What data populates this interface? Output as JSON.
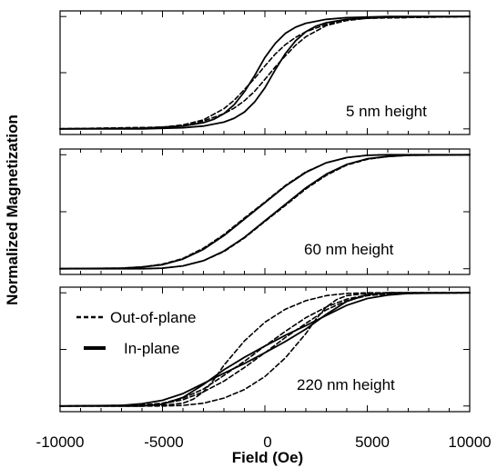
{
  "chart_data": {
    "type": "line",
    "ylabel": "Normalized Magnetization",
    "xlabel": "Field (Oe)",
    "xlim": [
      -10000,
      10000
    ],
    "ylim": [
      -1.1,
      1.1
    ],
    "x_ticks": [
      -10000,
      -5000,
      0,
      5000,
      10000
    ],
    "x_tick_labels": [
      "-10000",
      "-5000",
      "0",
      "5000",
      "10000"
    ],
    "grid": false,
    "legend": {
      "placement": "top-left of bottom panel",
      "entries": [
        {
          "label": "Out-of-plane",
          "style": "dashed"
        },
        {
          "label": "In-plane",
          "style": "solid"
        }
      ]
    },
    "panels": [
      {
        "annotation": "5 nm height",
        "series": [
          {
            "style": "solid",
            "branch": "descending",
            "x": [
              -10000,
              -6000,
              -4000,
              -3000,
              -2500,
              -2000,
              -1500,
              -1000,
              -500,
              0,
              500,
              1000,
              1500,
              2000,
              3000,
              4000,
              5000,
              6000,
              10000
            ],
            "y": [
              -1.0,
              -0.99,
              -0.95,
              -0.89,
              -0.83,
              -0.73,
              -0.57,
              -0.34,
              -0.05,
              0.27,
              0.52,
              0.7,
              0.81,
              0.88,
              0.95,
              0.98,
              0.99,
              1.0,
              1.0
            ]
          },
          {
            "style": "solid",
            "branch": "ascending",
            "x": [
              -10000,
              -6000,
              -5000,
              -4000,
              -3000,
              -2000,
              -1500,
              -1000,
              -500,
              0,
              500,
              1000,
              1500,
              2000,
              2500,
              3000,
              4000,
              6000,
              10000
            ],
            "y": [
              -1.0,
              -1.0,
              -0.99,
              -0.98,
              -0.95,
              -0.88,
              -0.81,
              -0.7,
              -0.52,
              -0.27,
              0.05,
              0.34,
              0.57,
              0.73,
              0.83,
              0.89,
              0.95,
              0.99,
              1.0
            ]
          },
          {
            "style": "dashed",
            "branch": "descending",
            "x": [
              -10000,
              -5000,
              -4000,
              -3000,
              -2000,
              -1500,
              -1000,
              -500,
              0,
              500,
              1000,
              1500,
              2000,
              3000,
              4000,
              5000,
              10000
            ],
            "y": [
              -1.0,
              -0.97,
              -0.93,
              -0.84,
              -0.64,
              -0.49,
              -0.3,
              -0.1,
              0.12,
              0.33,
              0.5,
              0.63,
              0.73,
              0.86,
              0.93,
              0.97,
              1.0
            ]
          },
          {
            "style": "dashed",
            "branch": "ascending",
            "x": [
              -10000,
              -5000,
              -4000,
              -3000,
              -2000,
              -1500,
              -1000,
              -500,
              0,
              500,
              1000,
              1500,
              2000,
              3000,
              4000,
              5000,
              10000
            ],
            "y": [
              -1.0,
              -0.97,
              -0.93,
              -0.86,
              -0.73,
              -0.63,
              -0.5,
              -0.33,
              -0.12,
              0.1,
              0.3,
              0.49,
              0.64,
              0.84,
              0.93,
              0.97,
              1.0
            ]
          }
        ]
      },
      {
        "annotation": "60 nm height",
        "series": [
          {
            "style": "solid",
            "branch": "descending",
            "x": [
              -10000,
              -7000,
              -6000,
              -5000,
              -4000,
              -3000,
              -2000,
              -1000,
              0,
              1000,
              2000,
              3000,
              4000,
              5000,
              6000,
              10000
            ],
            "y": [
              -1.0,
              -0.99,
              -0.97,
              -0.93,
              -0.83,
              -0.66,
              -0.42,
              -0.13,
              0.16,
              0.45,
              0.69,
              0.86,
              0.95,
              0.99,
              1.0,
              1.0
            ]
          },
          {
            "style": "solid",
            "branch": "ascending",
            "x": [
              -10000,
              -6000,
              -5000,
              -4000,
              -3000,
              -2000,
              -1000,
              0,
              1000,
              2000,
              3000,
              4000,
              5000,
              6000,
              7000,
              10000
            ],
            "y": [
              -1.0,
              -1.0,
              -0.99,
              -0.95,
              -0.86,
              -0.69,
              -0.45,
              -0.16,
              0.13,
              0.42,
              0.66,
              0.83,
              0.93,
              0.97,
              0.99,
              1.0
            ]
          },
          {
            "style": "dashed",
            "branch": "descending",
            "x": [
              -10000,
              -7000,
              -6000,
              -5000,
              -4000,
              -3000,
              -2000,
              -1000,
              0,
              1000,
              2000,
              3000,
              4000,
              5000,
              6000,
              10000
            ],
            "y": [
              -1.0,
              -0.99,
              -0.97,
              -0.92,
              -0.82,
              -0.64,
              -0.4,
              -0.11,
              0.17,
              0.46,
              0.7,
              0.86,
              0.95,
              0.99,
              1.0,
              1.0
            ]
          },
          {
            "style": "dashed",
            "branch": "ascending",
            "x": [
              -10000,
              -6000,
              -5000,
              -4000,
              -3000,
              -2000,
              -1000,
              0,
              1000,
              2000,
              3000,
              4000,
              5000,
              6000,
              7000,
              10000
            ],
            "y": [
              -1.0,
              -1.0,
              -0.99,
              -0.95,
              -0.86,
              -0.7,
              -0.46,
              -0.17,
              0.11,
              0.4,
              0.64,
              0.82,
              0.92,
              0.97,
              0.99,
              1.0
            ]
          }
        ]
      },
      {
        "annotation": "220 nm height",
        "series": [
          {
            "style": "solid",
            "branch": "descending",
            "x": [
              -10000,
              -7000,
              -6000,
              -5000,
              -4000,
              -3000,
              -2000,
              -1000,
              0,
              1000,
              2000,
              3000,
              4000,
              5000,
              6000,
              10000
            ],
            "y": [
              -1.0,
              -0.99,
              -0.96,
              -0.9,
              -0.78,
              -0.6,
              -0.42,
              -0.25,
              -0.06,
              0.14,
              0.36,
              0.62,
              0.85,
              0.97,
              1.0,
              1.0
            ]
          },
          {
            "style": "solid",
            "branch": "ascending",
            "x": [
              -10000,
              -6000,
              -5000,
              -4000,
              -3000,
              -2000,
              -1000,
              0,
              1000,
              2000,
              3000,
              4000,
              5000,
              6000,
              7000,
              10000
            ],
            "y": [
              -1.0,
              -1.0,
              -0.97,
              -0.85,
              -0.62,
              -0.36,
              -0.14,
              0.06,
              0.25,
              0.42,
              0.6,
              0.78,
              0.9,
              0.96,
              0.99,
              1.0
            ]
          },
          {
            "style": "dashed",
            "branch": "descending",
            "x": [
              -10000,
              -6000,
              -5000,
              -4000,
              -3500,
              -3000,
              -2500,
              -2000,
              -1000,
              0,
              1000,
              2000,
              3000,
              4000,
              5000,
              6000,
              10000
            ],
            "y": [
              -1.0,
              -1.0,
              -0.99,
              -0.95,
              -0.88,
              -0.75,
              -0.54,
              -0.28,
              0.15,
              0.48,
              0.71,
              0.86,
              0.95,
              0.99,
              1.0,
              1.0,
              1.0
            ]
          },
          {
            "style": "dashed",
            "branch": "ascending",
            "x": [
              -10000,
              -6000,
              -5000,
              -4000,
              -3000,
              -2000,
              -1000,
              0,
              1000,
              2000,
              2500,
              3000,
              3500,
              4000,
              5000,
              6000,
              10000
            ],
            "y": [
              -1.0,
              -1.0,
              -1.0,
              -0.99,
              -0.95,
              -0.86,
              -0.71,
              -0.48,
              -0.15,
              0.28,
              0.54,
              0.75,
              0.88,
              0.95,
              0.99,
              1.0,
              1.0
            ]
          },
          {
            "style": "dashed",
            "branch": "descending",
            "x": [
              -10000,
              -7000,
              -6000,
              -5000,
              -4000,
              -3000,
              -2000,
              -1000,
              0,
              1000,
              2000,
              3000,
              4000,
              5000,
              6000,
              10000
            ],
            "y": [
              -1.0,
              -0.99,
              -0.98,
              -0.95,
              -0.86,
              -0.7,
              -0.46,
              -0.21,
              0.06,
              0.32,
              0.56,
              0.75,
              0.89,
              0.96,
              0.99,
              1.0
            ]
          },
          {
            "style": "dashed",
            "branch": "ascending",
            "x": [
              -10000,
              -6000,
              -5000,
              -4000,
              -3000,
              -2000,
              -1000,
              0,
              1000,
              2000,
              3000,
              4000,
              5000,
              6000,
              7000,
              10000
            ],
            "y": [
              -1.0,
              -0.99,
              -0.96,
              -0.89,
              -0.75,
              -0.56,
              -0.32,
              -0.06,
              0.21,
              0.46,
              0.7,
              0.86,
              0.95,
              0.98,
              0.99,
              1.0
            ]
          }
        ]
      }
    ]
  }
}
